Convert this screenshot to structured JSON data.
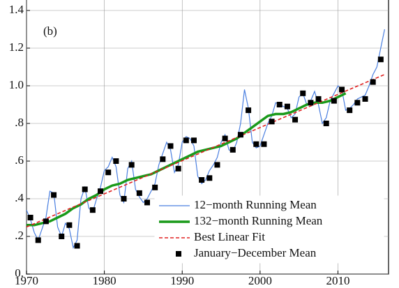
{
  "chart_data": {
    "type": "line",
    "annotations": [
      "(b)"
    ],
    "xlim": [
      1970,
      2016.5
    ],
    "xticks": [
      1970,
      1980,
      1990,
      2000,
      2010
    ],
    "ylim": [
      0,
      1.4
    ],
    "yticks": [
      {
        "value": 0,
        "label": "0."
      },
      {
        "value": 0.2,
        "label": ".2"
      },
      {
        "value": 0.4,
        "label": ".4"
      },
      {
        "value": 0.6,
        "label": ".6"
      },
      {
        "value": 0.8,
        "label": ".8"
      },
      {
        "value": 1.0,
        "label": "1.0"
      },
      {
        "value": 1.2,
        "label": "1.2"
      },
      {
        "value": 1.4,
        "label": "1.4"
      }
    ],
    "grid": true,
    "legend": "lower right",
    "series": [
      {
        "name": "12−month Running Mean",
        "color": "#4a7fe0",
        "style": "line",
        "x": [
          1970,
          1970.5,
          1971,
          1971.5,
          1972,
          1972.5,
          1973,
          1973.5,
          1974,
          1974.5,
          1975,
          1975.5,
          1976,
          1976.5,
          1977,
          1977.5,
          1978,
          1978.5,
          1979,
          1979.5,
          1980,
          1980.5,
          1981,
          1981.5,
          1982,
          1982.5,
          1983,
          1983.5,
          1984,
          1984.5,
          1985,
          1985.5,
          1986,
          1986.5,
          1987,
          1987.5,
          1988,
          1988.5,
          1989,
          1989.5,
          1990,
          1990.5,
          1991,
          1991.5,
          1992,
          1992.5,
          1993,
          1993.5,
          1994,
          1994.5,
          1995,
          1995.5,
          1996,
          1996.5,
          1997,
          1997.5,
          1998,
          1998.5,
          1999,
          1999.5,
          2000,
          2000.5,
          2001,
          2001.5,
          2002,
          2002.5,
          2003,
          2003.5,
          2004,
          2004.5,
          2005,
          2005.5,
          2006,
          2006.5,
          2007,
          2007.5,
          2008,
          2008.5,
          2009,
          2009.5,
          2010,
          2010.5,
          2011,
          2011.5,
          2012,
          2012.5,
          2013,
          2013.5,
          2014,
          2014.5,
          2015,
          2015.5,
          2016
        ],
        "values": [
          0.34,
          0.29,
          0.22,
          0.18,
          0.24,
          0.3,
          0.44,
          0.43,
          0.25,
          0.2,
          0.27,
          0.24,
          0.14,
          0.18,
          0.4,
          0.46,
          0.35,
          0.33,
          0.4,
          0.46,
          0.55,
          0.57,
          0.62,
          0.57,
          0.42,
          0.38,
          0.56,
          0.6,
          0.45,
          0.41,
          0.38,
          0.4,
          0.44,
          0.48,
          0.58,
          0.64,
          0.7,
          0.66,
          0.54,
          0.58,
          0.7,
          0.73,
          0.72,
          0.68,
          0.52,
          0.48,
          0.5,
          0.55,
          0.58,
          0.62,
          0.7,
          0.74,
          0.66,
          0.65,
          0.7,
          0.8,
          0.98,
          0.88,
          0.7,
          0.67,
          0.68,
          0.74,
          0.8,
          0.84,
          0.91,
          0.9,
          0.89,
          0.88,
          0.83,
          0.85,
          0.94,
          0.96,
          0.9,
          0.92,
          0.97,
          0.9,
          0.8,
          0.83,
          0.92,
          0.96,
          1.0,
          0.98,
          0.87,
          0.88,
          0.9,
          0.93,
          0.94,
          0.95,
          1.0,
          1.06,
          1.1,
          1.2,
          1.3
        ]
      },
      {
        "name": "132−month Running Mean",
        "color": "#1a9a1a",
        "style": "thick",
        "x": [
          1970,
          1971,
          1972,
          1973,
          1974,
          1975,
          1976,
          1977,
          1978,
          1979,
          1980,
          1981,
          1982,
          1983,
          1984,
          1985,
          1986,
          1987,
          1988,
          1989,
          1990,
          1991,
          1992,
          1993,
          1994,
          1995,
          1996,
          1997,
          1998,
          1999,
          2000,
          2001,
          2002,
          2003,
          2004,
          2005,
          2006,
          2007,
          2008,
          2009,
          2010,
          2011
        ],
        "values": [
          0.26,
          0.26,
          0.27,
          0.28,
          0.3,
          0.32,
          0.35,
          0.37,
          0.4,
          0.42,
          0.45,
          0.47,
          0.48,
          0.5,
          0.51,
          0.52,
          0.53,
          0.55,
          0.57,
          0.59,
          0.61,
          0.63,
          0.65,
          0.66,
          0.67,
          0.68,
          0.7,
          0.72,
          0.75,
          0.78,
          0.81,
          0.84,
          0.85,
          0.85,
          0.86,
          0.88,
          0.9,
          0.91,
          0.91,
          0.92,
          0.94,
          0.96
        ]
      },
      {
        "name": "Best Linear Fit",
        "color": "#e02020",
        "style": "dashed",
        "x": [
          1970,
          2016
        ],
        "values": [
          0.25,
          1.06
        ]
      },
      {
        "name": "January−December Mean",
        "color": "#000000",
        "style": "marker",
        "x": [
          1970.5,
          1971.5,
          1972.5,
          1973.5,
          1974.5,
          1975.5,
          1976.5,
          1977.5,
          1978.5,
          1979.5,
          1980.5,
          1981.5,
          1982.5,
          1983.5,
          1984.5,
          1985.5,
          1986.5,
          1987.5,
          1988.5,
          1989.5,
          1990.5,
          1991.5,
          1992.5,
          1993.5,
          1994.5,
          1995.5,
          1996.5,
          1997.5,
          1998.5,
          1999.5,
          2000.5,
          2001.5,
          2002.5,
          2003.5,
          2004.5,
          2005.5,
          2006.5,
          2007.5,
          2008.5,
          2009.5,
          2010.5,
          2011.5,
          2012.5,
          2013.5,
          2014.5,
          2015.5
        ],
        "values": [
          0.3,
          0.18,
          0.28,
          0.42,
          0.2,
          0.26,
          0.15,
          0.45,
          0.34,
          0.44,
          0.54,
          0.6,
          0.4,
          0.58,
          0.43,
          0.38,
          0.46,
          0.61,
          0.68,
          0.56,
          0.71,
          0.71,
          0.5,
          0.51,
          0.58,
          0.72,
          0.66,
          0.74,
          0.87,
          0.69,
          0.69,
          0.81,
          0.9,
          0.89,
          0.82,
          0.96,
          0.91,
          0.93,
          0.8,
          0.92,
          0.98,
          0.87,
          0.91,
          0.93,
          1.02,
          1.14
        ]
      }
    ]
  }
}
